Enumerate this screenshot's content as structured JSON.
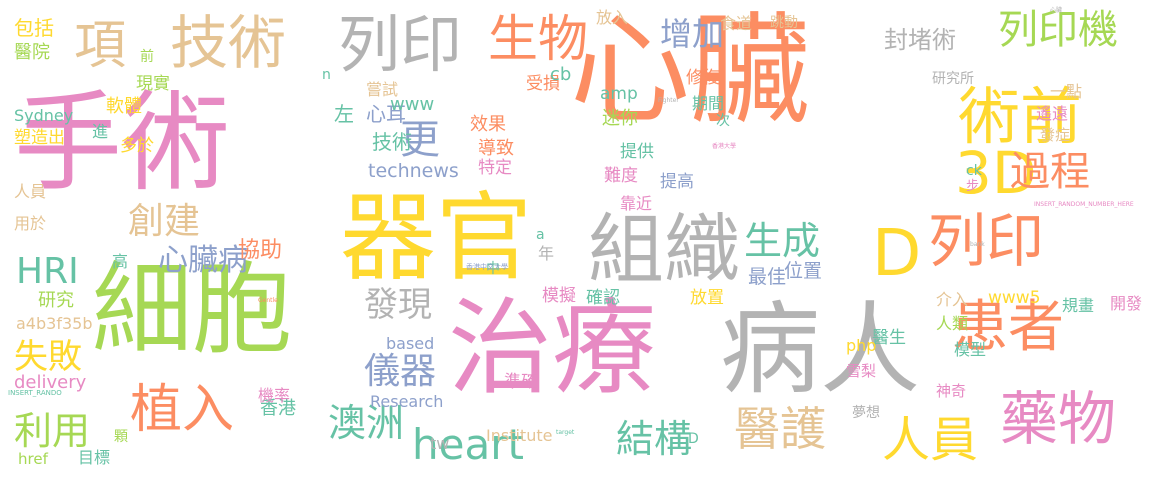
{
  "colors": {
    "pink": "#e78ac3",
    "orange": "#fc8d62",
    "yellow": "#ffd92f",
    "green": "#a6d854",
    "teal": "#66c2a5",
    "gray": "#b3b3b3",
    "blue": "#8da0cb",
    "tan": "#e5c494"
  },
  "words": [
    {
      "text": "手術",
      "color": "pink"
    },
    {
      "text": "心臟",
      "color": "orange"
    },
    {
      "text": "細胞",
      "color": "green"
    },
    {
      "text": "治療",
      "color": "pink"
    },
    {
      "text": "病人",
      "color": "gray"
    },
    {
      "text": "器官",
      "color": "yellow"
    },
    {
      "text": "組織",
      "color": "gray"
    },
    {
      "text": "技術",
      "color": "tan"
    },
    {
      "text": "列印",
      "color": "gray"
    },
    {
      "text": "項",
      "color": "tan"
    },
    {
      "text": "生物",
      "color": "orange"
    },
    {
      "text": "術前",
      "color": "yellow"
    },
    {
      "text": "3D",
      "color": "yellow"
    },
    {
      "text": "D",
      "color": "yellow"
    },
    {
      "text": "列印",
      "color": "orange"
    },
    {
      "text": "患者",
      "color": "orange"
    },
    {
      "text": "藥物",
      "color": "pink"
    },
    {
      "text": "醫護",
      "color": "tan"
    },
    {
      "text": "人員",
      "color": "yellow"
    },
    {
      "text": "列印機",
      "color": "green"
    },
    {
      "text": "過程",
      "color": "orange"
    },
    {
      "text": "增加",
      "color": "blue"
    },
    {
      "text": "封堵術",
      "color": "gray"
    },
    {
      "text": "生成",
      "color": "teal"
    },
    {
      "text": "更",
      "color": "blue"
    },
    {
      "text": "創建",
      "color": "tan"
    },
    {
      "text": "HRI",
      "color": "teal"
    },
    {
      "text": "心臟病",
      "color": "blue"
    },
    {
      "text": "植入",
      "color": "orange"
    },
    {
      "text": "利用",
      "color": "green"
    },
    {
      "text": "失敗",
      "color": "yellow"
    },
    {
      "text": "heart",
      "color": "teal"
    },
    {
      "text": "澳洲",
      "color": "teal"
    },
    {
      "text": "儀器",
      "color": "blue"
    },
    {
      "text": "發現",
      "color": "gray"
    },
    {
      "text": "結構",
      "color": "teal"
    },
    {
      "text": "心耳",
      "color": "blue"
    },
    {
      "text": "左",
      "color": "teal"
    },
    {
      "text": "技術",
      "color": "teal"
    },
    {
      "text": "technews",
      "color": "blue"
    },
    {
      "text": "www",
      "color": "teal"
    },
    {
      "text": "嘗試",
      "color": "tan"
    },
    {
      "text": "效果",
      "color": "orange"
    },
    {
      "text": "導致",
      "color": "orange"
    },
    {
      "text": "特定",
      "color": "pink"
    },
    {
      "text": "受損",
      "color": "orange"
    },
    {
      "text": "cb",
      "color": "teal"
    },
    {
      "text": "amp",
      "color": "teal"
    },
    {
      "text": "放入",
      "color": "tan"
    },
    {
      "text": "食道",
      "color": "tan"
    },
    {
      "text": "跳動",
      "color": "tan"
    },
    {
      "text": "修復",
      "color": "orange"
    },
    {
      "text": "期間",
      "color": "teal"
    },
    {
      "text": "迷你",
      "color": "green"
    },
    {
      "text": "次",
      "color": "teal"
    },
    {
      "text": "提供",
      "color": "teal"
    },
    {
      "text": "難度",
      "color": "pink"
    },
    {
      "text": "提高",
      "color": "blue"
    },
    {
      "text": "靠近",
      "color": "pink"
    },
    {
      "text": "協助",
      "color": "orange"
    },
    {
      "text": "高",
      "color": "teal"
    },
    {
      "text": "研究",
      "color": "green"
    },
    {
      "text": "a4b3f35b",
      "color": "tan"
    },
    {
      "text": "delivery",
      "color": "pink"
    },
    {
      "text": "香港",
      "color": "teal"
    },
    {
      "text": "機率",
      "color": "pink"
    },
    {
      "text": "based",
      "color": "blue"
    },
    {
      "text": "Research",
      "color": "blue"
    },
    {
      "text": "Institute",
      "color": "tan"
    },
    {
      "text": "tw",
      "color": "gray"
    },
    {
      "text": "準確",
      "color": "pink"
    },
    {
      "text": "模擬",
      "color": "pink"
    },
    {
      "text": "確認",
      "color": "teal"
    },
    {
      "text": "最佳",
      "color": "blue"
    },
    {
      "text": "位置",
      "color": "blue"
    },
    {
      "text": "放置",
      "color": "yellow"
    },
    {
      "text": "介入",
      "color": "tan"
    },
    {
      "text": "www5",
      "color": "yellow"
    },
    {
      "text": "規畫",
      "color": "teal"
    },
    {
      "text": "開發",
      "color": "pink"
    },
    {
      "text": "人類",
      "color": "green"
    },
    {
      "text": "模型",
      "color": "teal"
    },
    {
      "text": "醫生",
      "color": "teal"
    },
    {
      "text": "php",
      "color": "yellow"
    },
    {
      "text": "雪梨",
      "color": "pink"
    },
    {
      "text": "神奇",
      "color": "pink"
    },
    {
      "text": "夢想",
      "color": "gray"
    },
    {
      "text": "研究所",
      "color": "gray"
    },
    {
      "text": "遙遠",
      "color": "pink"
    },
    {
      "text": "一點",
      "color": "tan"
    },
    {
      "text": "發症",
      "color": "tan"
    },
    {
      "text": "ck",
      "color": "teal"
    },
    {
      "text": "步",
      "color": "pink"
    },
    {
      "text": "包括",
      "color": "yellow"
    },
    {
      "text": "醫院",
      "color": "green"
    },
    {
      "text": "前",
      "color": "green"
    },
    {
      "text": "現實",
      "color": "green"
    },
    {
      "text": "軟體",
      "color": "yellow"
    },
    {
      "text": "Sydney",
      "color": "teal"
    },
    {
      "text": "塑造出",
      "color": "yellow"
    },
    {
      "text": "多於",
      "color": "yellow"
    },
    {
      "text": "進",
      "color": "teal"
    },
    {
      "text": "人員",
      "color": "tan"
    },
    {
      "text": "用於",
      "color": "tan"
    },
    {
      "text": "年",
      "color": "gray"
    },
    {
      "text": "中",
      "color": "teal"
    },
    {
      "text": "a",
      "color": "teal"
    },
    {
      "text": "D",
      "color": "teal"
    },
    {
      "text": "n",
      "color": "teal"
    },
    {
      "text": "顆",
      "color": "green"
    },
    {
      "text": "href",
      "color": "green"
    },
    {
      "text": "目標",
      "color": "teal"
    },
    {
      "text": "INSERT_RANDOM_NUMBER_HERE",
      "color": "pink"
    },
    {
      "text": "INSERT_RANDO",
      "color": "teal"
    },
    {
      "text": "香港中文大學",
      "color": "blue"
    },
    {
      "text": "Gentle",
      "color": "orange"
    },
    {
      "text": "Fighter",
      "color": "gray"
    },
    {
      "text": "香港大學",
      "color": "pink"
    },
    {
      "text": "bank",
      "color": "gray"
    },
    {
      "text": "target",
      "color": "teal"
    },
    {
      "text": "心臟",
      "color": "gray"
    }
  ]
}
